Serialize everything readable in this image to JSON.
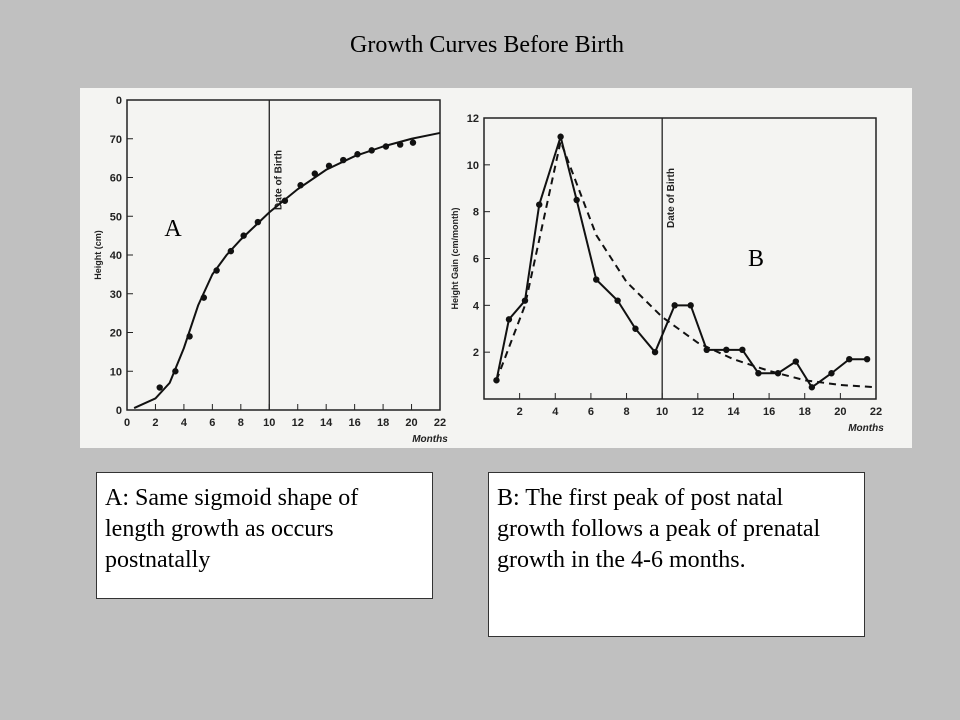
{
  "title": "Growth Curves Before Birth",
  "panel_labels": [
    "A",
    "B"
  ],
  "notes": [
    "A: Same sigmoid shape of length growth as occurs postnatally",
    "B: The first peak of post natal growth follows a peak of prenatal growth in the 4-6 months."
  ],
  "chart_data": [
    {
      "type": "line",
      "ylabel": "Height (cm)",
      "xlabel": "Months",
      "annotation": "Date of Birth",
      "birth_x": 10,
      "xlim": [
        0,
        22
      ],
      "xticks": [
        0,
        2,
        4,
        6,
        8,
        10,
        12,
        14,
        16,
        18,
        20,
        22
      ],
      "ylim": [
        0,
        80
      ],
      "yticks": [
        0,
        10,
        20,
        30,
        40,
        50,
        60,
        70,
        {
          "value": 80,
          "label": "0"
        }
      ],
      "color": "#111",
      "series": [
        {
          "style": "markers",
          "x": [
            2.3,
            3.4,
            4.4,
            5.4,
            6.3,
            7.3,
            8.2,
            9.2,
            11.1,
            12.2,
            13.2,
            14.2,
            15.2,
            16.2,
            17.2,
            18.2,
            19.2,
            20.1
          ],
          "values": [
            5.8,
            10,
            19,
            29,
            36,
            41,
            45,
            48.5,
            54,
            58,
            61,
            63,
            64.5,
            66,
            67,
            68,
            68.5,
            69
          ]
        },
        {
          "style": "solid",
          "x": [
            0.5,
            2,
            3,
            4,
            5,
            6,
            7,
            8,
            10,
            12,
            14,
            16,
            18,
            20,
            22
          ],
          "values": [
            0.5,
            3,
            7,
            16,
            27,
            35,
            40,
            44,
            51,
            57,
            62,
            65.5,
            68,
            70,
            71.5
          ]
        }
      ]
    },
    {
      "type": "line",
      "ylabel": "Height Gain (cm/month)",
      "xlabel": "Months",
      "annotation": "Date of Birth",
      "birth_x": 10,
      "xlim": [
        0,
        22
      ],
      "xticks": [
        2,
        4,
        6,
        8,
        10,
        12,
        14,
        16,
        18,
        20,
        22
      ],
      "ylim": [
        0,
        12
      ],
      "yticks": [
        2,
        4,
        6,
        8,
        10,
        12
      ],
      "color": "#111",
      "series": [
        {
          "style": "solid-markers",
          "x": [
            0.7,
            1.4,
            2.3,
            3.1,
            4.3,
            5.2,
            6.3,
            7.5,
            8.5,
            9.6,
            10.7,
            11.6,
            12.5,
            13.6,
            14.5,
            15.4,
            16.5,
            17.5,
            18.4,
            19.5,
            20.5,
            21.5
          ],
          "values": [
            0.8,
            3.4,
            4.2,
            8.3,
            11.2,
            8.5,
            5.1,
            4.2,
            3.0,
            2.0,
            4.0,
            4.0,
            2.1,
            2.1,
            2.1,
            1.1,
            1.1,
            1.6,
            0.5,
            1.1,
            1.7,
            1.7
          ]
        },
        {
          "style": "dashed",
          "x": [
            0.7,
            2.3,
            4.3,
            6.3,
            8,
            10,
            12,
            14,
            16,
            18,
            20,
            22
          ],
          "values": [
            0.8,
            4,
            11,
            7,
            5,
            3.5,
            2.4,
            1.7,
            1.2,
            0.8,
            0.6,
            0.5
          ]
        }
      ]
    }
  ]
}
